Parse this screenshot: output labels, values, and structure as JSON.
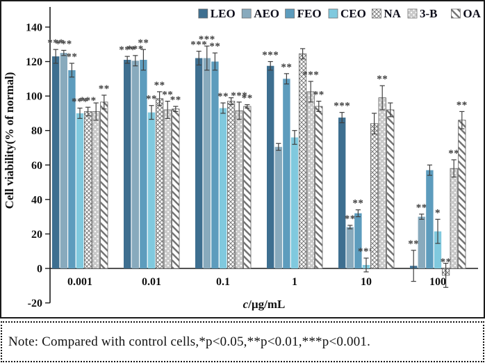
{
  "note": {
    "text": "Note: Compared with control cells,*p<0.05,**p<0.01,***p<0.001."
  },
  "chart_data": {
    "type": "bar",
    "title": "",
    "ylabel": "Cell viability(% of normal)",
    "xlabel": "c/µg/mL",
    "xlabel_italic_prefix": "c",
    "xlabel_rest": "/µg/mL",
    "ylim": [
      -20,
      140
    ],
    "yticks": [
      -20,
      0,
      20,
      40,
      60,
      80,
      100,
      120,
      140
    ],
    "grid": false,
    "legend_position": "top-right-inside",
    "categories": [
      "0.001",
      "0.01",
      "0.1",
      "1",
      "10",
      "100"
    ],
    "significance_note": "*p<0.05, **p<0.01, ***p<0.001 vs control",
    "colors": {
      "LEO": "#3e6f90",
      "AEO": "#88aabd",
      "FEO": "#5d9cbd",
      "CEO": "#80c9de",
      "pattern_line": "#7a7a7a",
      "dots_bg": "#c9c9c9",
      "error_bar": "#3f3f3f",
      "annotation": "#3d3d3d",
      "axis": "#1a1a1a"
    },
    "series": [
      {
        "name": "LEO",
        "fill": "solid",
        "color": "#3e6f90",
        "values": [
          123,
          121,
          122,
          117.5,
          87.5,
          1.5
        ],
        "errors": [
          4,
          2,
          4,
          2.5,
          3,
          9
        ],
        "sig": [
          "***",
          "***",
          "***",
          "***",
          "***",
          "**"
        ]
      },
      {
        "name": "AEO",
        "fill": "solid",
        "color": "#88aabd",
        "values": [
          125,
          120.5,
          122,
          70.5,
          24,
          30
        ],
        "errors": [
          1.5,
          3,
          7,
          2,
          1,
          1.5
        ],
        "sig": [
          "***",
          "***",
          "***",
          "",
          "**",
          "**"
        ]
      },
      {
        "name": "FEO",
        "fill": "solid",
        "color": "#5d9cbd",
        "values": [
          115,
          121,
          120,
          110,
          32,
          57
        ],
        "errors": [
          4,
          6,
          5,
          3,
          2,
          3
        ],
        "sig": [
          "**",
          "**",
          "**",
          "**",
          "**",
          ""
        ]
      },
      {
        "name": "CEO",
        "fill": "solid",
        "color": "#80c9de",
        "values": [
          90,
          90.5,
          93,
          76,
          2,
          21.5
        ],
        "errors": [
          3,
          4,
          3,
          4,
          4,
          7
        ],
        "sig": [
          "***",
          "**",
          "**",
          "",
          "***",
          "*"
        ]
      },
      {
        "name": "NA",
        "fill": "crosshatch",
        "values": [
          91,
          98.5,
          97,
          124.5,
          84,
          -4
        ],
        "errors": [
          2.5,
          4,
          2,
          3,
          6,
          7
        ],
        "sig": [
          "***",
          "**",
          "",
          "",
          "",
          "**"
        ]
      },
      {
        "name": "3-B",
        "fill": "dots",
        "values": [
          91,
          92,
          91.5,
          102.5,
          99,
          58
        ],
        "errors": [
          5,
          5,
          5,
          6,
          7,
          5
        ],
        "sig": [
          "",
          "**",
          "***",
          "***",
          "**",
          "**"
        ]
      },
      {
        "name": "OA",
        "fill": "diagonal",
        "values": [
          96.5,
          92.5,
          94,
          94,
          92,
          86
        ],
        "errors": [
          4,
          1.5,
          1,
          3,
          4,
          5
        ],
        "sig": [
          "**",
          "**",
          "**",
          "**",
          "",
          "**"
        ]
      }
    ]
  }
}
